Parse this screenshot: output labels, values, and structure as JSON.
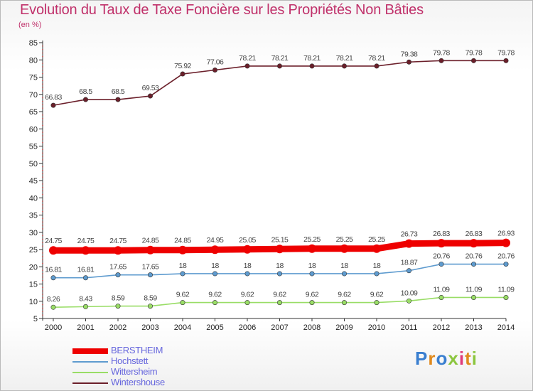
{
  "header": {
    "title": "Evolution du Taux de Taxe Foncière sur les Propriétés Non Bâties",
    "subtitle": "(en %)"
  },
  "chart_data": {
    "type": "line",
    "title": "Evolution du Taux de Taxe Foncière sur les Propriétés Non Bâties",
    "subtitle": "(en %)",
    "xlabel": "",
    "ylabel": "",
    "ylim": [
      5,
      85
    ],
    "yticks": [
      5,
      10,
      15,
      20,
      25,
      30,
      35,
      40,
      45,
      50,
      55,
      60,
      65,
      70,
      75,
      80,
      85
    ],
    "grid": false,
    "legend_position": "bottom-left",
    "x": [
      "2000",
      "2001",
      "2002",
      "2003",
      "2004",
      "2005",
      "2006",
      "2007",
      "2008",
      "2009",
      "2010",
      "2011",
      "2012",
      "2013",
      "2014"
    ],
    "series": [
      {
        "name": "BERSTHEIM",
        "color": "#ee0000",
        "labels": [
          "24.75",
          "24.75",
          "24.75",
          "24.85",
          "24.85",
          "24.95",
          "25.05",
          "25.15",
          "25.25",
          "25.25",
          "25.25",
          "26.73",
          "26.83",
          "26.83",
          "26.93"
        ],
        "values": [
          24.75,
          24.75,
          24.75,
          24.85,
          24.85,
          24.95,
          25.05,
          25.15,
          25.25,
          25.25,
          25.25,
          26.73,
          26.83,
          26.83,
          26.93
        ]
      },
      {
        "name": "Hochstett",
        "color": "#5e9bcf",
        "labels": [
          "16.81",
          "16.81",
          "17.65",
          "17.65",
          "18",
          "18",
          "18",
          "18",
          "18",
          "18",
          "18",
          "18.87",
          "20.76",
          "20.76",
          "20.76"
        ],
        "values": [
          16.81,
          16.81,
          17.65,
          17.65,
          18,
          18,
          18,
          18,
          18,
          18,
          18,
          18.87,
          20.76,
          20.76,
          20.76
        ]
      },
      {
        "name": "Wittersheim",
        "color": "#99dd66",
        "labels": [
          "8.26",
          "8.43",
          "8.59",
          "8.59",
          "9.62",
          "9.62",
          "9.62",
          "9.62",
          "9.62",
          "9.62",
          "9.62",
          "10.09",
          "11.09",
          "11.09",
          "11.09"
        ],
        "values": [
          8.26,
          8.43,
          8.59,
          8.59,
          9.62,
          9.62,
          9.62,
          9.62,
          9.62,
          9.62,
          9.62,
          10.09,
          11.09,
          11.09,
          11.09
        ]
      },
      {
        "name": "Wintershouse",
        "color": "#6b1f2a",
        "labels": [
          "66.83",
          "68.5",
          "68.5",
          "69.53",
          "75.92",
          "77.06",
          "78.21",
          "78.21",
          "78.21",
          "78.21",
          "78.21",
          "79.38",
          "79.78",
          "79.78",
          "79.78"
        ],
        "values": [
          66.83,
          68.5,
          68.5,
          69.53,
          75.92,
          77.06,
          78.21,
          78.21,
          78.21,
          78.21,
          78.21,
          79.38,
          79.78,
          79.78,
          79.78
        ]
      }
    ]
  },
  "logo": {
    "letters": [
      "P",
      "r",
      "o",
      "x",
      "i",
      "t",
      "i"
    ],
    "colors": [
      "#3a7fd0",
      "#e08a1e",
      "#3a7fd0",
      "#8cc63f",
      "#e03a7a",
      "#e08a1e",
      "#8cc63f"
    ]
  }
}
